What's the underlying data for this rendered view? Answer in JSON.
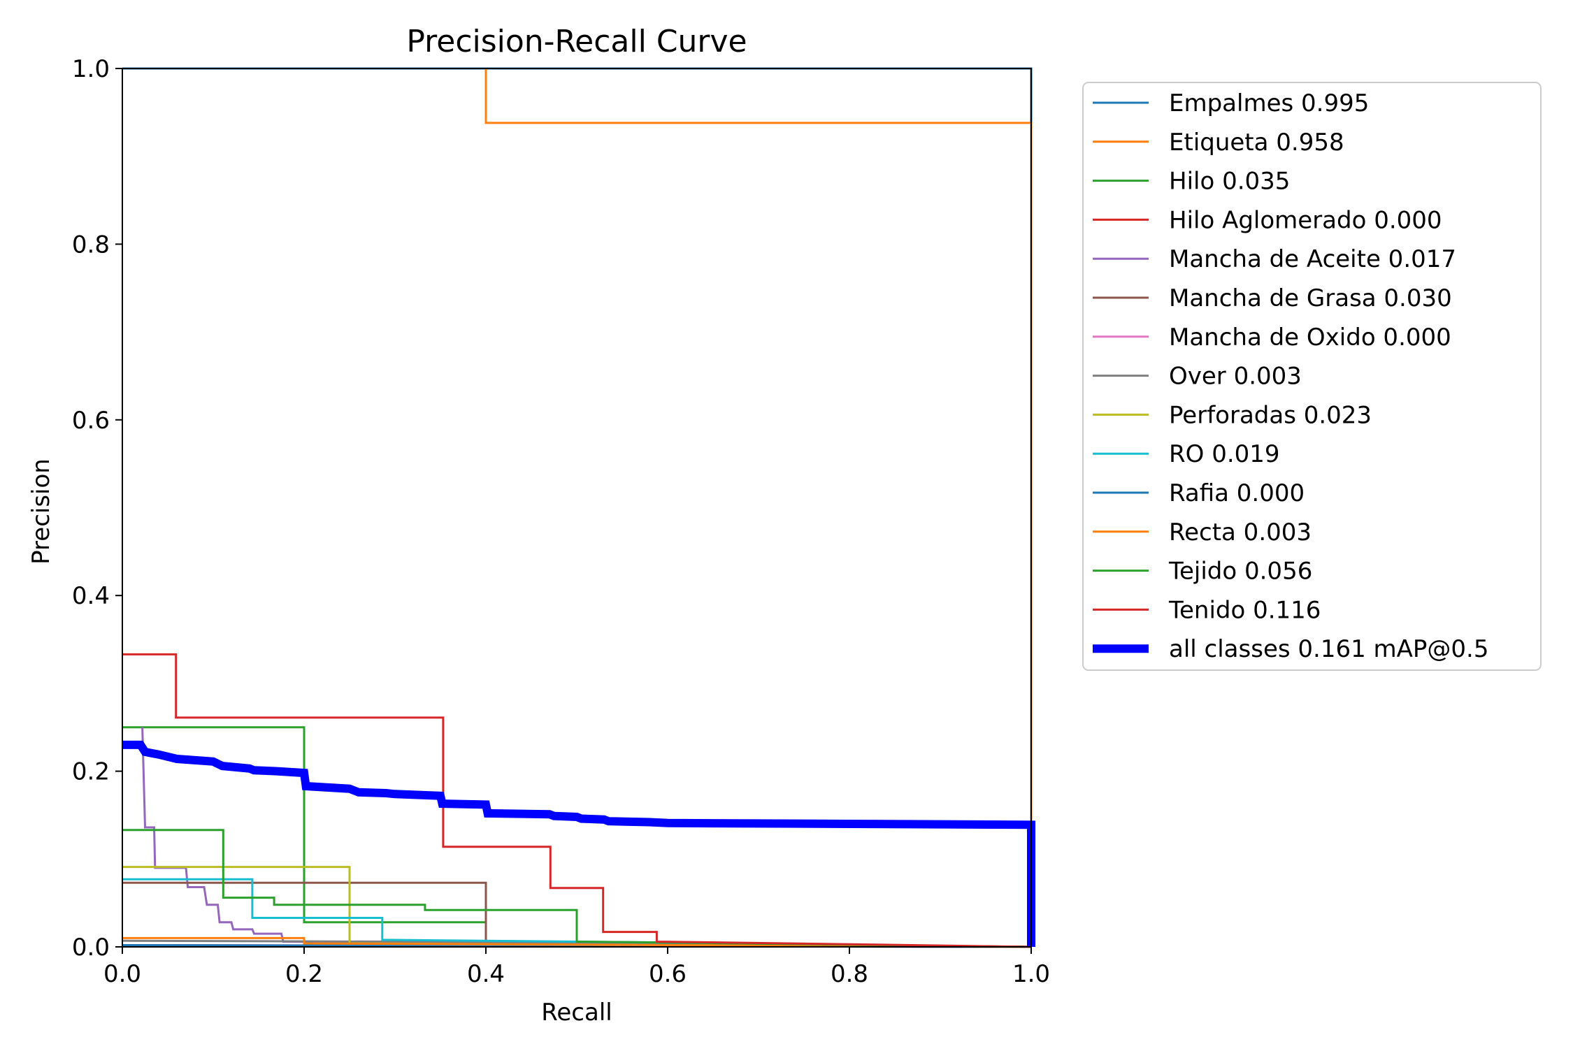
{
  "chart_data": {
    "type": "line",
    "title": "Precision-Recall Curve",
    "xlabel": "Recall",
    "ylabel": "Precision",
    "xlim": [
      0,
      1
    ],
    "ylim": [
      0,
      1
    ],
    "xticks": [
      "0.0",
      "0.2",
      "0.4",
      "0.6",
      "0.8",
      "1.0"
    ],
    "yticks": [
      "0.0",
      "0.2",
      "0.4",
      "0.6",
      "0.8",
      "1.0"
    ],
    "grid": false,
    "legend_position": "outside-right",
    "series": [
      {
        "name": "Empalmes 0.995",
        "color": "#1f77b4",
        "width": 1.5,
        "points": [
          [
            0,
            1.0
          ],
          [
            1.0,
            1.0
          ],
          [
            1.0,
            0.0
          ]
        ]
      },
      {
        "name": "Etiqueta 0.958",
        "color": "#ff7f0e",
        "width": 1.5,
        "points": [
          [
            0.4,
            1.0
          ],
          [
            0.4,
            0.938
          ],
          [
            1.0,
            0.938
          ],
          [
            1.0,
            0.0
          ]
        ]
      },
      {
        "name": "Hilo 0.035",
        "color": "#2ca02c",
        "width": 1.5,
        "points": [
          [
            0,
            0.25
          ],
          [
            0.2,
            0.25
          ],
          [
            0.2,
            0.028
          ],
          [
            0.4,
            0.028
          ],
          [
            0.4,
            0.006
          ],
          [
            0.6,
            0.004
          ],
          [
            1.0,
            0.0
          ]
        ]
      },
      {
        "name": "Hilo Aglomerado 0.000",
        "color": "#d62728",
        "width": 1.5,
        "points": [
          [
            0,
            0.002
          ],
          [
            0.5,
            0.001
          ],
          [
            1.0,
            0.0
          ]
        ]
      },
      {
        "name": "Mancha de Aceite 0.017",
        "color": "#9467bd",
        "width": 1.5,
        "points": [
          [
            0.022,
            0.25
          ],
          [
            0.025,
            0.136
          ],
          [
            0.035,
            0.136
          ],
          [
            0.036,
            0.09
          ],
          [
            0.07,
            0.09
          ],
          [
            0.072,
            0.068
          ],
          [
            0.09,
            0.068
          ],
          [
            0.093,
            0.048
          ],
          [
            0.105,
            0.048
          ],
          [
            0.107,
            0.028
          ],
          [
            0.12,
            0.028
          ],
          [
            0.122,
            0.02
          ],
          [
            0.143,
            0.02
          ],
          [
            0.145,
            0.015
          ],
          [
            0.175,
            0.015
          ],
          [
            0.177,
            0.006
          ],
          [
            0.3,
            0.005
          ],
          [
            0.6,
            0.003
          ],
          [
            1.0,
            0.0
          ]
        ]
      },
      {
        "name": "Mancha de Grasa 0.030",
        "color": "#8c564b",
        "width": 1.5,
        "points": [
          [
            0,
            0.073
          ],
          [
            0.4,
            0.073
          ],
          [
            0.4,
            0.004
          ],
          [
            0.6,
            0.003
          ],
          [
            1.0,
            0.0
          ]
        ]
      },
      {
        "name": "Mancha de Oxido 0.000",
        "color": "#e377c2",
        "width": 1.5,
        "points": [
          [
            0,
            0.002
          ],
          [
            0.6,
            0.001
          ],
          [
            1.0,
            0.0
          ]
        ]
      },
      {
        "name": "Over 0.003",
        "color": "#7f7f7f",
        "width": 1.5,
        "points": [
          [
            0,
            0.007
          ],
          [
            0.3,
            0.006
          ],
          [
            0.6,
            0.004
          ],
          [
            1.0,
            0.0
          ]
        ]
      },
      {
        "name": "Perforadas 0.023",
        "color": "#bcbd22",
        "width": 1.5,
        "points": [
          [
            0,
            0.091
          ],
          [
            0.25,
            0.091
          ],
          [
            0.25,
            0.004
          ],
          [
            0.6,
            0.002
          ],
          [
            1.0,
            0.0
          ]
        ]
      },
      {
        "name": "RO 0.019",
        "color": "#17becf",
        "width": 1.5,
        "points": [
          [
            0,
            0.077
          ],
          [
            0.143,
            0.077
          ],
          [
            0.143,
            0.033
          ],
          [
            0.286,
            0.033
          ],
          [
            0.286,
            0.008
          ],
          [
            0.6,
            0.005
          ],
          [
            1.0,
            0.0
          ]
        ]
      },
      {
        "name": "Rafia 0.000",
        "color": "#1f77b4",
        "width": 1.5,
        "points": [
          [
            0,
            0.002
          ],
          [
            0.5,
            0.001
          ],
          [
            1.0,
            0.0
          ]
        ]
      },
      {
        "name": "Recta 0.003",
        "color": "#ff7f0e",
        "width": 1.5,
        "points": [
          [
            0,
            0.01
          ],
          [
            0.2,
            0.01
          ],
          [
            0.2,
            0.004
          ],
          [
            0.6,
            0.002
          ],
          [
            1.0,
            0.0
          ]
        ]
      },
      {
        "name": "Tejido 0.056",
        "color": "#2ca02c",
        "width": 1.5,
        "points": [
          [
            0,
            0.133
          ],
          [
            0.111,
            0.133
          ],
          [
            0.111,
            0.056
          ],
          [
            0.167,
            0.056
          ],
          [
            0.167,
            0.048
          ],
          [
            0.333,
            0.048
          ],
          [
            0.333,
            0.042
          ],
          [
            0.5,
            0.042
          ],
          [
            0.5,
            0.006
          ],
          [
            0.6,
            0.005
          ],
          [
            1.0,
            0.0
          ]
        ]
      },
      {
        "name": "Tenido 0.116",
        "color": "#d62728",
        "width": 1.5,
        "points": [
          [
            0,
            0.333
          ],
          [
            0.059,
            0.333
          ],
          [
            0.059,
            0.261
          ],
          [
            0.353,
            0.261
          ],
          [
            0.353,
            0.114
          ],
          [
            0.471,
            0.114
          ],
          [
            0.471,
            0.067
          ],
          [
            0.529,
            0.067
          ],
          [
            0.529,
            0.017
          ],
          [
            0.588,
            0.017
          ],
          [
            0.588,
            0.006
          ],
          [
            0.8,
            0.003
          ],
          [
            1.0,
            0.0
          ]
        ]
      },
      {
        "name": "all classes 0.161 mAP@0.5",
        "color": "#0000ff",
        "width": 6,
        "points": [
          [
            0,
            0.23
          ],
          [
            0.02,
            0.23
          ],
          [
            0.025,
            0.222
          ],
          [
            0.03,
            0.221
          ],
          [
            0.04,
            0.219
          ],
          [
            0.06,
            0.214
          ],
          [
            0.1,
            0.211
          ],
          [
            0.11,
            0.206
          ],
          [
            0.14,
            0.203
          ],
          [
            0.145,
            0.201
          ],
          [
            0.17,
            0.2
          ],
          [
            0.2,
            0.198
          ],
          [
            0.202,
            0.183
          ],
          [
            0.25,
            0.18
          ],
          [
            0.26,
            0.176
          ],
          [
            0.29,
            0.175
          ],
          [
            0.3,
            0.174
          ],
          [
            0.35,
            0.172
          ],
          [
            0.352,
            0.163
          ],
          [
            0.4,
            0.162
          ],
          [
            0.402,
            0.152
          ],
          [
            0.47,
            0.151
          ],
          [
            0.475,
            0.149
          ],
          [
            0.5,
            0.148
          ],
          [
            0.505,
            0.146
          ],
          [
            0.53,
            0.145
          ],
          [
            0.535,
            0.143
          ],
          [
            0.58,
            0.142
          ],
          [
            0.6,
            0.141
          ],
          [
            0.8,
            0.14
          ],
          [
            1.0,
            0.139
          ],
          [
            1.0,
            0.0
          ]
        ]
      }
    ]
  }
}
